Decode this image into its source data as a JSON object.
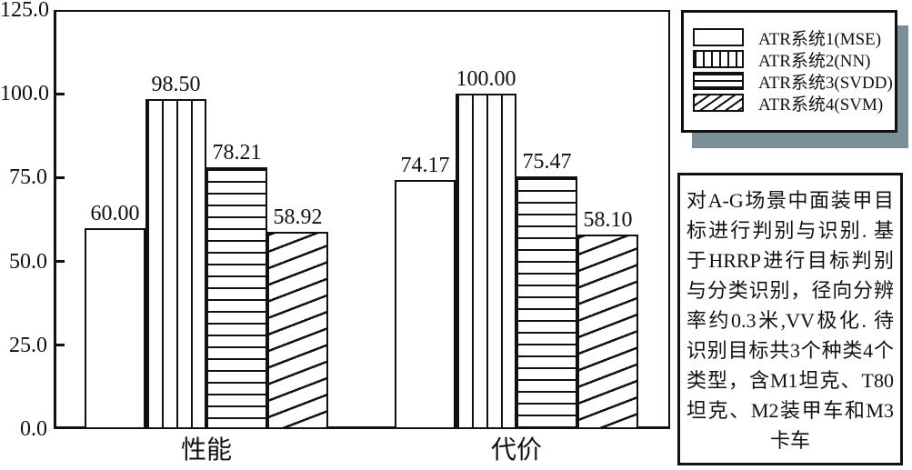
{
  "colors": {
    "ink": "#111111",
    "background": "#ffffff",
    "bar_fill": "#ffffff",
    "box_shadow": "#7b8f96"
  },
  "chart_data": {
    "type": "bar",
    "title": "",
    "xlabel": "",
    "ylabel": "",
    "categories": [
      "性能",
      "代价"
    ],
    "series": [
      {
        "name": "ATR系统1(MSE)",
        "pattern": "plain",
        "values": [
          60.0,
          74.17
        ]
      },
      {
        "name": "ATR系统2(NN)",
        "pattern": "vertical",
        "values": [
          98.5,
          100.0
        ]
      },
      {
        "name": "ATR系统3(SVDD)",
        "pattern": "horizontal",
        "values": [
          78.21,
          75.47
        ]
      },
      {
        "name": "ATR系统4(SVM)",
        "pattern": "diagonal",
        "values": [
          58.92,
          58.1
        ]
      }
    ],
    "bar_value_labels": [
      [
        "60.00",
        "98.50",
        "78.21",
        "58.92"
      ],
      [
        "74.17",
        "100.00",
        "75.47",
        "58.10"
      ]
    ],
    "ylim": [
      0,
      125
    ],
    "ytick_values": [
      0,
      25,
      50,
      75,
      100,
      125
    ],
    "ytick_labels": [
      "0.0",
      "25.0",
      "50.0",
      "75.0",
      "100.0",
      "125.0"
    ],
    "grid": false,
    "legend_position": "outside-top-right"
  },
  "legend": {
    "items": [
      {
        "label": "ATR系统1(MSE)",
        "pattern": "plain"
      },
      {
        "label": "ATR系统2(NN)",
        "pattern": "vertical"
      },
      {
        "label": "ATR系统3(SVDD)",
        "pattern": "horizontal"
      },
      {
        "label": "ATR系统4(SVM)",
        "pattern": "diagonal"
      }
    ]
  },
  "annotation": {
    "full_text": "对A-G场景中面装甲目标进行判别与识别. 基于HRRP进行目标判别与分类识别，径向分辨率约0.3米,VV极化. 待识别目标共3个种类4个类型，含M1坦克、T80坦克、M2装甲车和M3卡车",
    "lines": [
      "对A-G场景中面装甲目",
      "标进行判别与识别. 基",
      "于HRRP进行目标判别",
      "与分类识别，径向分辨",
      "率约0.3米,VV极化. 待",
      "识别目标共3个种类4个",
      "类型，含M1坦克、T80",
      "坦克、M2装甲车和M3",
      "卡车"
    ]
  }
}
